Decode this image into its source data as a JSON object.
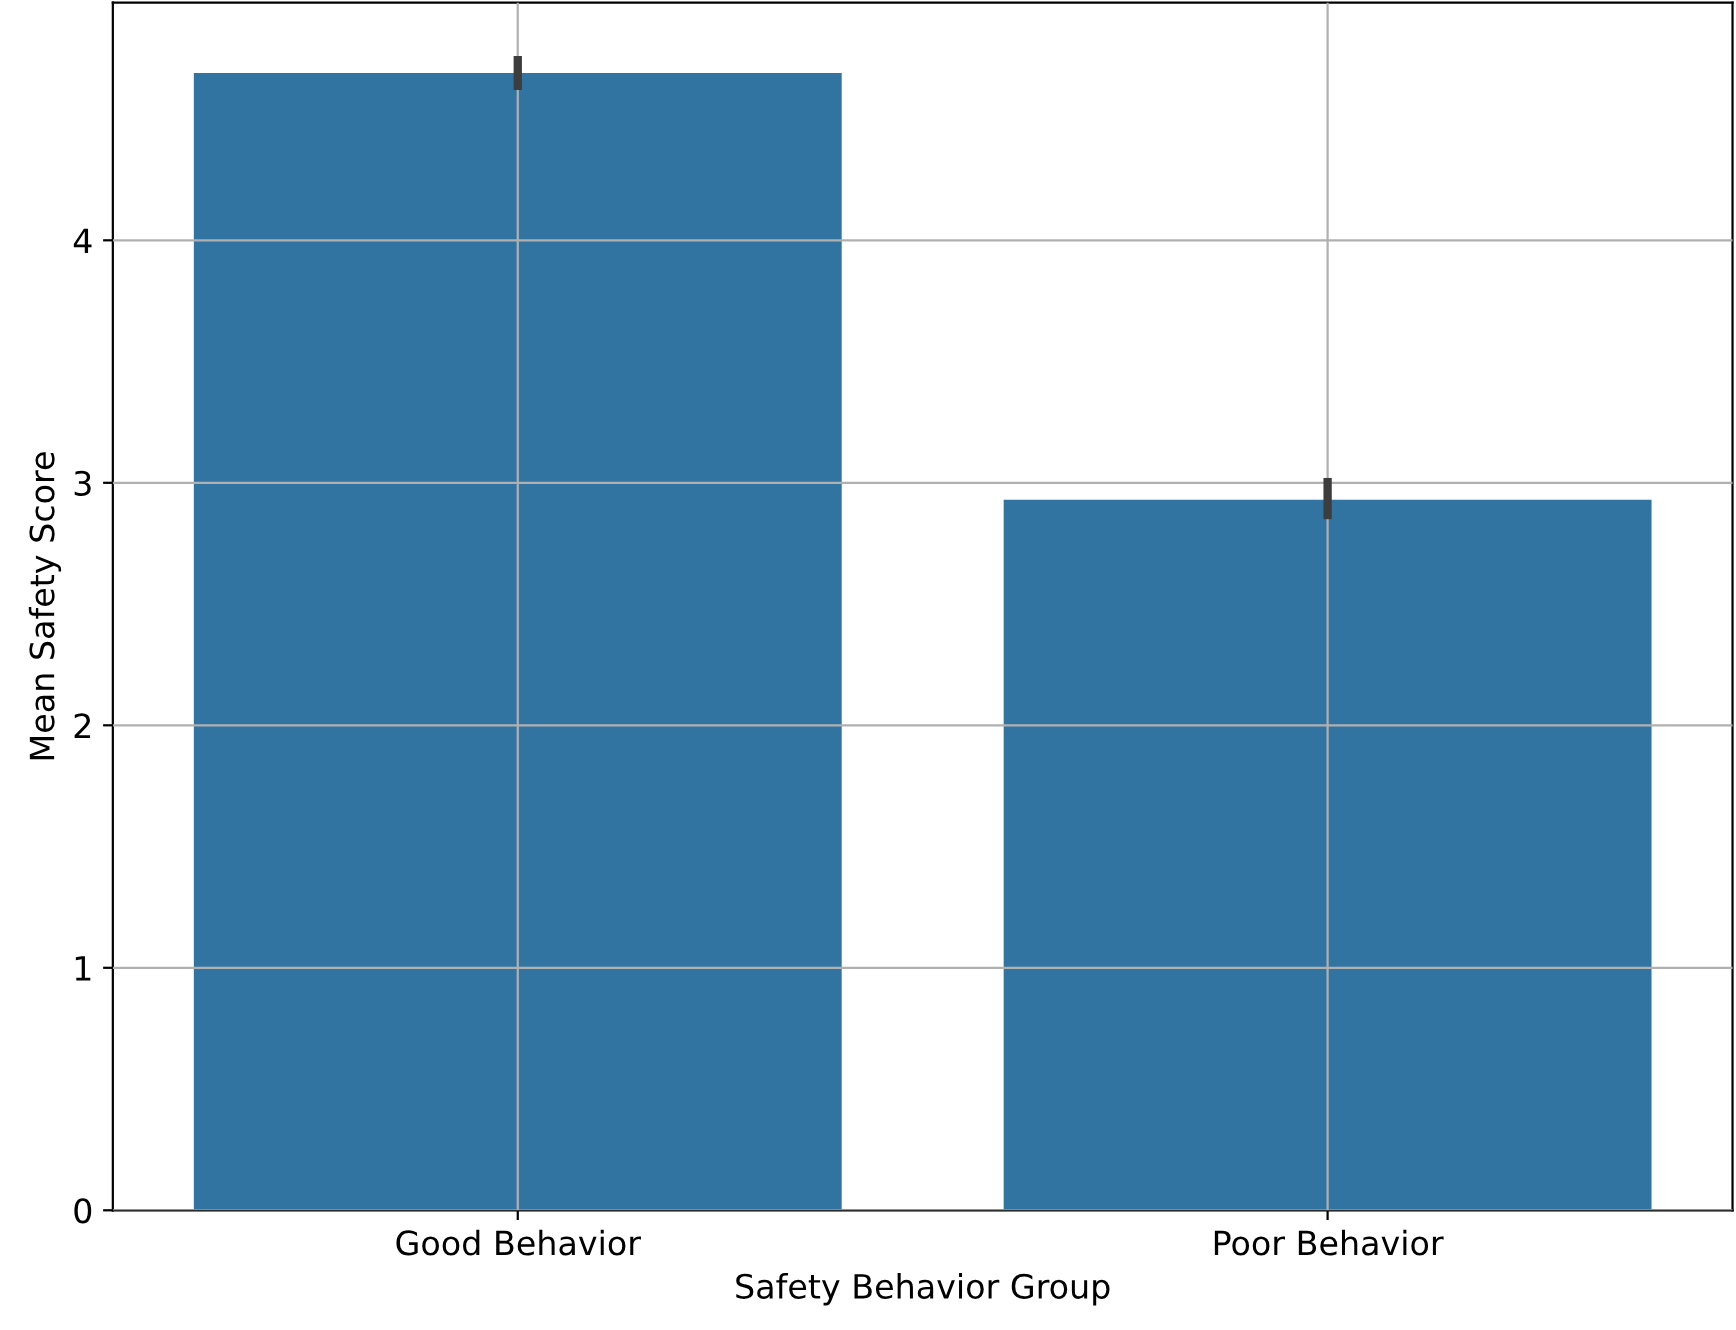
{
  "chart_data": {
    "type": "bar",
    "xlabel": "Safety Behavior Group",
    "ylabel": "Mean Safety Score",
    "categories": [
      "Good Behavior",
      "Poor Behavior"
    ],
    "values": [
      4.69,
      2.93
    ],
    "errors": [
      [
        4.62,
        4.76
      ],
      [
        2.85,
        3.02
      ]
    ],
    "color": "#3274a1",
    "ylim": [
      0,
      4.98
    ],
    "yticks": [
      0,
      1,
      2,
      3,
      4
    ],
    "grid": true
  }
}
